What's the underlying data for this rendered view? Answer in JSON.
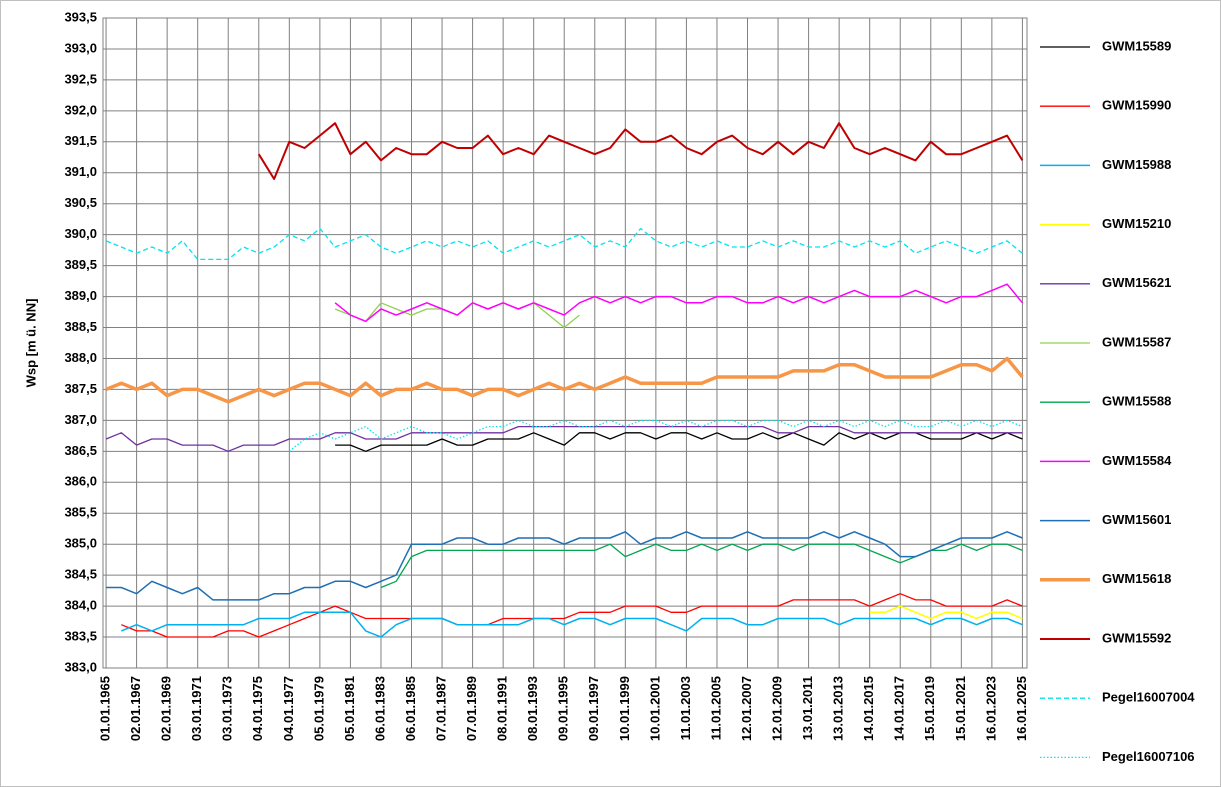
{
  "chart_data": {
    "type": "line",
    "y_label": "Wsp [m ü. NN]",
    "grid": true,
    "legend": "right",
    "xlim": [
      1964.8,
      2025.3
    ],
    "ylim": [
      383.0,
      393.5
    ],
    "xticks": [
      {
        "value": 1965,
        "label": "01.01.1965"
      },
      {
        "value": 1967,
        "label": "02.01.1967"
      },
      {
        "value": 1969,
        "label": "02.01.1969"
      },
      {
        "value": 1971,
        "label": "03.01.1971"
      },
      {
        "value": 1973,
        "label": "03.01.1973"
      },
      {
        "value": 1975,
        "label": "04.01.1975"
      },
      {
        "value": 1977,
        "label": "04.01.1977"
      },
      {
        "value": 1979,
        "label": "05.01.1979"
      },
      {
        "value": 1981,
        "label": "05.01.1981"
      },
      {
        "value": 1983,
        "label": "06.01.1983"
      },
      {
        "value": 1985,
        "label": "06.01.1985"
      },
      {
        "value": 1987,
        "label": "07.01.1987"
      },
      {
        "value": 1989,
        "label": "07.01.1989"
      },
      {
        "value": 1991,
        "label": "08.01.1991"
      },
      {
        "value": 1993,
        "label": "08.01.1993"
      },
      {
        "value": 1995,
        "label": "09.01.1995"
      },
      {
        "value": 1997,
        "label": "09.01.1997"
      },
      {
        "value": 1999,
        "label": "10.01.1999"
      },
      {
        "value": 2001,
        "label": "10.01.2001"
      },
      {
        "value": 2003,
        "label": "11.01.2003"
      },
      {
        "value": 2005,
        "label": "11.01.2005"
      },
      {
        "value": 2007,
        "label": "12.01.2007"
      },
      {
        "value": 2009,
        "label": "12.01.2009"
      },
      {
        "value": 2011,
        "label": "13.01.2011"
      },
      {
        "value": 2013,
        "label": "13.01.2013"
      },
      {
        "value": 2015,
        "label": "14.01.2015"
      },
      {
        "value": 2017,
        "label": "14.01.2017"
      },
      {
        "value": 2019,
        "label": "15.01.2019"
      },
      {
        "value": 2021,
        "label": "15.01.2021"
      },
      {
        "value": 2023,
        "label": "16.01.2023"
      },
      {
        "value": 2025,
        "label": "16.01.2025"
      }
    ],
    "yticks": [
      {
        "value": 383.0,
        "label": "383,0"
      },
      {
        "value": 383.5,
        "label": "383,5"
      },
      {
        "value": 384.0,
        "label": "384,0"
      },
      {
        "value": 384.5,
        "label": "384,5"
      },
      {
        "value": 385.0,
        "label": "385,0"
      },
      {
        "value": 385.5,
        "label": "385,5"
      },
      {
        "value": 386.0,
        "label": "386,0"
      },
      {
        "value": 386.5,
        "label": "386,5"
      },
      {
        "value": 387.0,
        "label": "387,0"
      },
      {
        "value": 387.5,
        "label": "387,5"
      },
      {
        "value": 388.0,
        "label": "388,0"
      },
      {
        "value": 388.5,
        "label": "388,5"
      },
      {
        "value": 389.0,
        "label": "389,0"
      },
      {
        "value": 389.5,
        "label": "389,5"
      },
      {
        "value": 390.0,
        "label": "390,0"
      },
      {
        "value": 390.5,
        "label": "390,5"
      },
      {
        "value": 391.0,
        "label": "391,0"
      },
      {
        "value": 391.5,
        "label": "391,5"
      },
      {
        "value": 392.0,
        "label": "392,0"
      },
      {
        "value": 392.5,
        "label": "392,5"
      },
      {
        "value": 393.0,
        "label": "393,0"
      },
      {
        "value": 393.5,
        "label": "393,5"
      }
    ],
    "x": [
      1965,
      1966,
      1967,
      1968,
      1969,
      1970,
      1971,
      1972,
      1973,
      1974,
      1975,
      1976,
      1977,
      1978,
      1979,
      1980,
      1981,
      1982,
      1983,
      1984,
      1985,
      1986,
      1987,
      1988,
      1989,
      1990,
      1991,
      1992,
      1993,
      1994,
      1995,
      1996,
      1997,
      1998,
      1999,
      2000,
      2001,
      2002,
      2003,
      2004,
      2005,
      2006,
      2007,
      2008,
      2009,
      2010,
      2011,
      2012,
      2013,
      2014,
      2015,
      2016,
      2017,
      2018,
      2019,
      2020,
      2021,
      2022,
      2023,
      2024,
      2025
    ],
    "series": [
      {
        "name": "GWM15589",
        "color": "#000000",
        "width": 1.3,
        "style": "solid",
        "values": [
          null,
          null,
          null,
          null,
          null,
          null,
          null,
          null,
          null,
          null,
          null,
          null,
          null,
          null,
          null,
          386.6,
          386.6,
          386.5,
          386.6,
          386.6,
          386.6,
          386.6,
          386.7,
          386.6,
          386.6,
          386.7,
          386.7,
          386.7,
          386.8,
          386.7,
          386.6,
          386.8,
          386.8,
          386.7,
          386.8,
          386.8,
          386.7,
          386.8,
          386.8,
          386.7,
          386.8,
          386.7,
          386.7,
          386.8,
          386.7,
          386.8,
          386.7,
          386.6,
          386.8,
          386.7,
          386.8,
          386.7,
          386.8,
          386.8,
          386.7,
          386.7,
          386.7,
          386.8,
          386.7,
          386.8,
          386.7
        ]
      },
      {
        "name": "GWM15990",
        "color": "#ff0000",
        "width": 1.3,
        "style": "solid",
        "values": [
          null,
          383.7,
          383.6,
          383.6,
          383.5,
          383.5,
          383.5,
          383.5,
          383.6,
          383.6,
          383.5,
          383.6,
          383.7,
          383.8,
          383.9,
          384.0,
          383.9,
          383.8,
          383.8,
          383.8,
          383.8,
          383.8,
          383.8,
          383.7,
          383.7,
          383.7,
          383.8,
          383.8,
          383.8,
          383.8,
          383.8,
          383.9,
          383.9,
          383.9,
          384.0,
          384.0,
          384.0,
          383.9,
          383.9,
          384.0,
          384.0,
          384.0,
          384.0,
          384.0,
          384.0,
          384.1,
          384.1,
          384.1,
          384.1,
          384.1,
          384.0,
          384.1,
          384.2,
          384.1,
          384.1,
          384.0,
          384.0,
          384.0,
          384.0,
          384.1,
          384.0
        ]
      },
      {
        "name": "GWM15988",
        "color": "#00b0f0",
        "width": 1.5,
        "style": "solid",
        "values": [
          null,
          383.6,
          383.7,
          383.6,
          383.7,
          383.7,
          383.7,
          383.7,
          383.7,
          383.7,
          383.8,
          383.8,
          383.8,
          383.9,
          383.9,
          383.9,
          383.9,
          383.6,
          383.5,
          383.7,
          383.8,
          383.8,
          383.8,
          383.7,
          383.7,
          383.7,
          383.7,
          383.7,
          383.8,
          383.8,
          383.7,
          383.8,
          383.8,
          383.7,
          383.8,
          383.8,
          383.8,
          383.7,
          383.6,
          383.8,
          383.8,
          383.8,
          383.7,
          383.7,
          383.8,
          383.8,
          383.8,
          383.8,
          383.7,
          383.8,
          383.8,
          383.8,
          383.8,
          383.8,
          383.7,
          383.8,
          383.8,
          383.7,
          383.8,
          383.8,
          383.7
        ]
      },
      {
        "name": "GWM15210",
        "color": "#ffff00",
        "width": 1.5,
        "style": "solid",
        "values": [
          null,
          null,
          null,
          null,
          null,
          null,
          null,
          null,
          null,
          null,
          null,
          null,
          null,
          null,
          null,
          null,
          null,
          null,
          null,
          null,
          null,
          null,
          null,
          null,
          null,
          null,
          null,
          null,
          null,
          null,
          null,
          null,
          null,
          null,
          null,
          null,
          null,
          null,
          null,
          null,
          null,
          null,
          null,
          null,
          null,
          null,
          null,
          null,
          null,
          null,
          383.9,
          383.9,
          384.0,
          383.9,
          383.8,
          383.9,
          383.9,
          383.8,
          383.9,
          383.9,
          383.8
        ]
      },
      {
        "name": "GWM15621",
        "color": "#7030a0",
        "width": 1.3,
        "style": "solid",
        "values": [
          386.7,
          386.8,
          386.6,
          386.7,
          386.7,
          386.6,
          386.6,
          386.6,
          386.5,
          386.6,
          386.6,
          386.6,
          386.7,
          386.7,
          386.7,
          386.8,
          386.8,
          386.7,
          386.7,
          386.7,
          386.8,
          386.8,
          386.8,
          386.8,
          386.8,
          386.8,
          386.8,
          386.9,
          386.9,
          386.9,
          386.9,
          386.9,
          386.9,
          386.9,
          386.9,
          386.9,
          386.9,
          386.9,
          386.9,
          386.9,
          386.9,
          386.9,
          386.9,
          386.9,
          386.8,
          386.8,
          386.9,
          386.9,
          386.9,
          386.8,
          386.8,
          386.8,
          386.8,
          386.8,
          386.8,
          386.8,
          386.8,
          386.8,
          386.8,
          386.8,
          386.8
        ]
      },
      {
        "name": "GWM15587",
        "color": "#92d050",
        "width": 1.3,
        "style": "solid",
        "values": [
          null,
          null,
          null,
          null,
          null,
          null,
          null,
          null,
          null,
          null,
          null,
          null,
          null,
          null,
          null,
          388.8,
          388.7,
          388.6,
          388.9,
          388.8,
          388.7,
          388.8,
          388.8,
          388.7,
          388.9,
          388.8,
          388.9,
          388.8,
          388.9,
          388.7,
          388.5,
          388.7,
          null,
          null,
          null,
          null,
          null,
          null,
          null,
          null,
          null,
          null,
          null,
          null,
          null,
          null,
          null,
          null,
          null,
          null,
          null,
          null,
          null,
          null,
          null,
          null,
          null,
          null,
          null,
          null,
          null
        ]
      },
      {
        "name": "GWM15588",
        "color": "#00a650",
        "width": 1.3,
        "style": "solid",
        "values": [
          null,
          null,
          null,
          null,
          null,
          null,
          null,
          null,
          null,
          null,
          null,
          null,
          null,
          null,
          null,
          null,
          null,
          null,
          384.3,
          384.4,
          384.8,
          384.9,
          384.9,
          384.9,
          384.9,
          384.9,
          384.9,
          384.9,
          384.9,
          384.9,
          384.9,
          384.9,
          384.9,
          385.0,
          384.8,
          384.9,
          385.0,
          384.9,
          384.9,
          385.0,
          384.9,
          385.0,
          384.9,
          385.0,
          385.0,
          384.9,
          385.0,
          385.0,
          385.0,
          385.0,
          384.9,
          384.8,
          384.7,
          384.8,
          384.9,
          384.9,
          385.0,
          384.9,
          385.0,
          385.0,
          384.9
        ]
      },
      {
        "name": "GWM15584",
        "color": "#ff00ff",
        "width": 1.5,
        "style": "solid",
        "values": [
          null,
          null,
          null,
          null,
          null,
          null,
          null,
          null,
          null,
          null,
          null,
          null,
          null,
          null,
          null,
          388.9,
          388.7,
          388.6,
          388.8,
          388.7,
          388.8,
          388.9,
          388.8,
          388.7,
          388.9,
          388.8,
          388.9,
          388.8,
          388.9,
          388.8,
          388.7,
          388.9,
          389.0,
          388.9,
          389.0,
          388.9,
          389.0,
          389.0,
          388.9,
          388.9,
          389.0,
          389.0,
          388.9,
          388.9,
          389.0,
          388.9,
          389.0,
          388.9,
          389.0,
          389.1,
          389.0,
          389.0,
          389.0,
          389.1,
          389.0,
          388.9,
          389.0,
          389.0,
          389.1,
          389.2,
          388.9
        ]
      },
      {
        "name": "GWM15601",
        "color": "#1f6fb4",
        "width": 1.5,
        "style": "solid",
        "values": [
          384.3,
          384.3,
          384.2,
          384.4,
          384.3,
          384.2,
          384.3,
          384.1,
          384.1,
          384.1,
          384.1,
          384.2,
          384.2,
          384.3,
          384.3,
          384.4,
          384.4,
          384.3,
          384.4,
          384.5,
          385.0,
          385.0,
          385.0,
          385.1,
          385.1,
          385.0,
          385.0,
          385.1,
          385.1,
          385.1,
          385.0,
          385.1,
          385.1,
          385.1,
          385.2,
          385.0,
          385.1,
          385.1,
          385.2,
          385.1,
          385.1,
          385.1,
          385.2,
          385.1,
          385.1,
          385.1,
          385.1,
          385.2,
          385.1,
          385.2,
          385.1,
          385.0,
          384.8,
          384.8,
          384.9,
          385.0,
          385.1,
          385.1,
          385.1,
          385.2,
          385.1
        ]
      },
      {
        "name": "GWM15618",
        "color": "#f79646",
        "width": 3.5,
        "style": "solid",
        "values": [
          387.5,
          387.6,
          387.5,
          387.6,
          387.4,
          387.5,
          387.5,
          387.4,
          387.3,
          387.4,
          387.5,
          387.4,
          387.5,
          387.6,
          387.6,
          387.5,
          387.4,
          387.6,
          387.4,
          387.5,
          387.5,
          387.6,
          387.5,
          387.5,
          387.4,
          387.5,
          387.5,
          387.4,
          387.5,
          387.6,
          387.5,
          387.6,
          387.5,
          387.6,
          387.7,
          387.6,
          387.6,
          387.6,
          387.6,
          387.6,
          387.7,
          387.7,
          387.7,
          387.7,
          387.7,
          387.8,
          387.8,
          387.8,
          387.9,
          387.9,
          387.8,
          387.7,
          387.7,
          387.7,
          387.7,
          387.8,
          387.9,
          387.9,
          387.8,
          388.0,
          387.7
        ]
      },
      {
        "name": "GWM15592",
        "color": "#c00000",
        "width": 2,
        "style": "solid",
        "values": [
          null,
          null,
          null,
          null,
          null,
          null,
          null,
          null,
          null,
          null,
          391.3,
          390.9,
          391.5,
          391.4,
          391.6,
          391.8,
          391.3,
          391.5,
          391.2,
          391.4,
          391.3,
          391.3,
          391.5,
          391.4,
          391.4,
          391.6,
          391.3,
          391.4,
          391.3,
          391.6,
          391.5,
          391.4,
          391.3,
          391.4,
          391.7,
          391.5,
          391.5,
          391.6,
          391.4,
          391.3,
          391.5,
          391.6,
          391.4,
          391.3,
          391.5,
          391.3,
          391.5,
          391.4,
          391.8,
          391.4,
          391.3,
          391.4,
          391.3,
          391.2,
          391.5,
          391.3,
          391.3,
          391.4,
          391.5,
          391.6,
          391.2
        ]
      },
      {
        "name": "Pegel16007004",
        "color": "#00e5f0",
        "width": 1.3,
        "style": "dashed",
        "values": [
          389.9,
          389.8,
          389.7,
          389.8,
          389.7,
          389.9,
          389.6,
          389.6,
          389.6,
          389.8,
          389.7,
          389.8,
          390.0,
          389.9,
          390.1,
          389.8,
          389.9,
          390.0,
          389.8,
          389.7,
          389.8,
          389.9,
          389.8,
          389.9,
          389.8,
          389.9,
          389.7,
          389.8,
          389.9,
          389.8,
          389.9,
          390.0,
          389.8,
          389.9,
          389.8,
          390.1,
          389.9,
          389.8,
          389.9,
          389.8,
          389.9,
          389.8,
          389.8,
          389.9,
          389.8,
          389.9,
          389.8,
          389.8,
          389.9,
          389.8,
          389.9,
          389.8,
          389.9,
          389.7,
          389.8,
          389.9,
          389.8,
          389.7,
          389.8,
          389.9,
          389.7
        ]
      },
      {
        "name": "Pegel16007106",
        "color": "#00e5f0",
        "width": 1.3,
        "style": "dotted",
        "values": [
          null,
          null,
          null,
          null,
          null,
          null,
          null,
          null,
          null,
          null,
          null,
          null,
          386.5,
          386.7,
          386.8,
          386.7,
          386.8,
          386.9,
          386.7,
          386.8,
          386.9,
          386.8,
          386.8,
          386.7,
          386.8,
          386.9,
          386.9,
          387.0,
          386.9,
          386.9,
          387.0,
          386.9,
          386.9,
          387.0,
          386.9,
          387.0,
          387.0,
          386.9,
          387.0,
          386.9,
          387.0,
          387.0,
          386.9,
          387.0,
          387.0,
          386.9,
          387.0,
          386.9,
          387.0,
          386.9,
          387.0,
          386.9,
          387.0,
          386.9,
          386.9,
          387.0,
          386.9,
          387.0,
          386.9,
          387.0,
          386.9
        ]
      }
    ]
  }
}
